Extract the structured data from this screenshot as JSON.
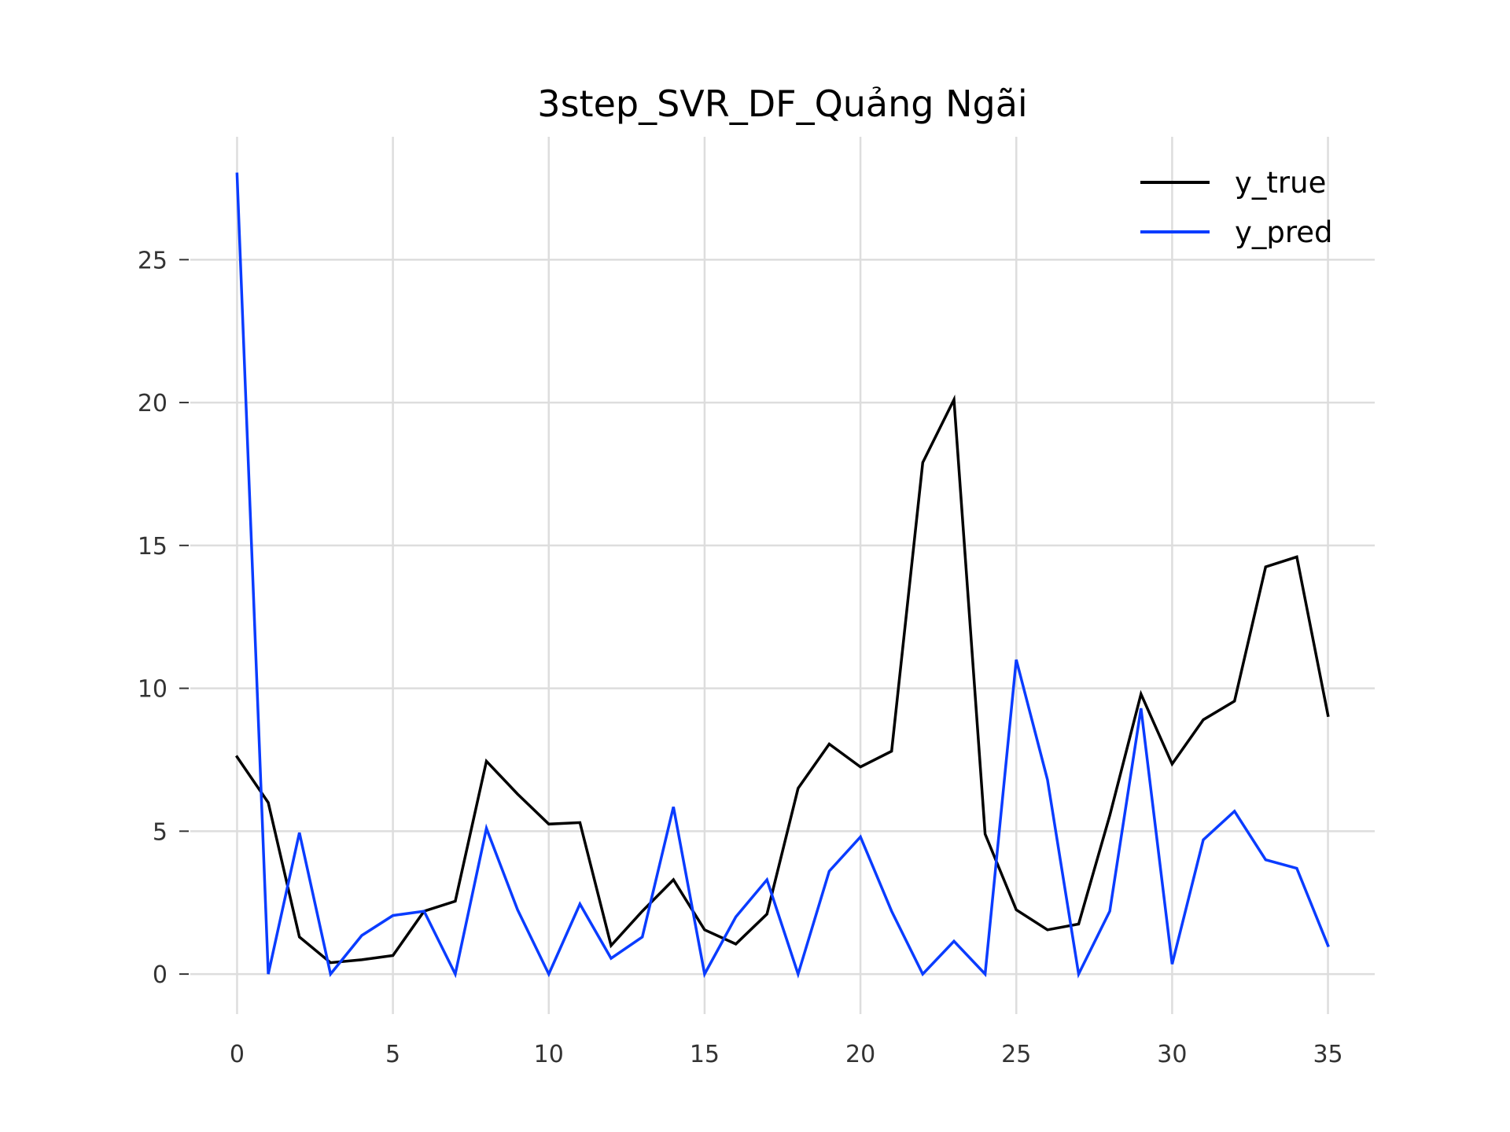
{
  "chart_data": {
    "type": "line",
    "title": "3step_SVR_DF_Quảng Ngãi",
    "xlabel": "",
    "ylabel": "",
    "xlim": [
      -1.5,
      36.5
    ],
    "ylim": [
      -1.4,
      29.3
    ],
    "xticks": [
      0,
      5,
      10,
      15,
      20,
      25,
      30,
      35
    ],
    "yticks": [
      0,
      5,
      10,
      15,
      20,
      25
    ],
    "xtick_labels": [
      "0",
      "5",
      "10",
      "15",
      "20",
      "25",
      "30",
      "35"
    ],
    "ytick_labels": [
      "0",
      "5",
      "10",
      "15",
      "20",
      "25"
    ],
    "grid": true,
    "legend_position": "top-right",
    "x": [
      0,
      1,
      2,
      3,
      4,
      5,
      6,
      7,
      8,
      9,
      10,
      11,
      12,
      13,
      14,
      15,
      16,
      17,
      18,
      19,
      20,
      21,
      22,
      23,
      24,
      25,
      26,
      27,
      28,
      29,
      30,
      31,
      32,
      33,
      34,
      35
    ],
    "series": [
      {
        "name": "y_true",
        "color": "#000000",
        "values": [
          7.6,
          6.0,
          1.3,
          0.4,
          0.5,
          0.65,
          2.2,
          2.55,
          7.45,
          6.3,
          5.25,
          5.3,
          1.0,
          2.2,
          3.3,
          1.55,
          1.05,
          2.1,
          6.5,
          8.05,
          7.25,
          7.8,
          17.9,
          20.1,
          4.9,
          2.25,
          1.55,
          1.75,
          5.55,
          9.8,
          7.35,
          8.9,
          9.55,
          14.25,
          14.6,
          9.05
        ]
      },
      {
        "name": "y_pred",
        "color": "#0a3cff",
        "values": [
          28.0,
          0.0,
          4.95,
          0.0,
          1.35,
          2.05,
          2.2,
          0.0,
          5.1,
          2.25,
          0.0,
          2.45,
          0.55,
          1.3,
          5.85,
          0.0,
          2.0,
          3.3,
          0.0,
          3.6,
          4.8,
          2.2,
          0.0,
          1.15,
          0.0,
          11.0,
          6.8,
          0.0,
          2.2,
          9.3,
          0.35,
          4.7,
          5.7,
          4.0,
          3.7,
          1.0
        ]
      }
    ]
  }
}
